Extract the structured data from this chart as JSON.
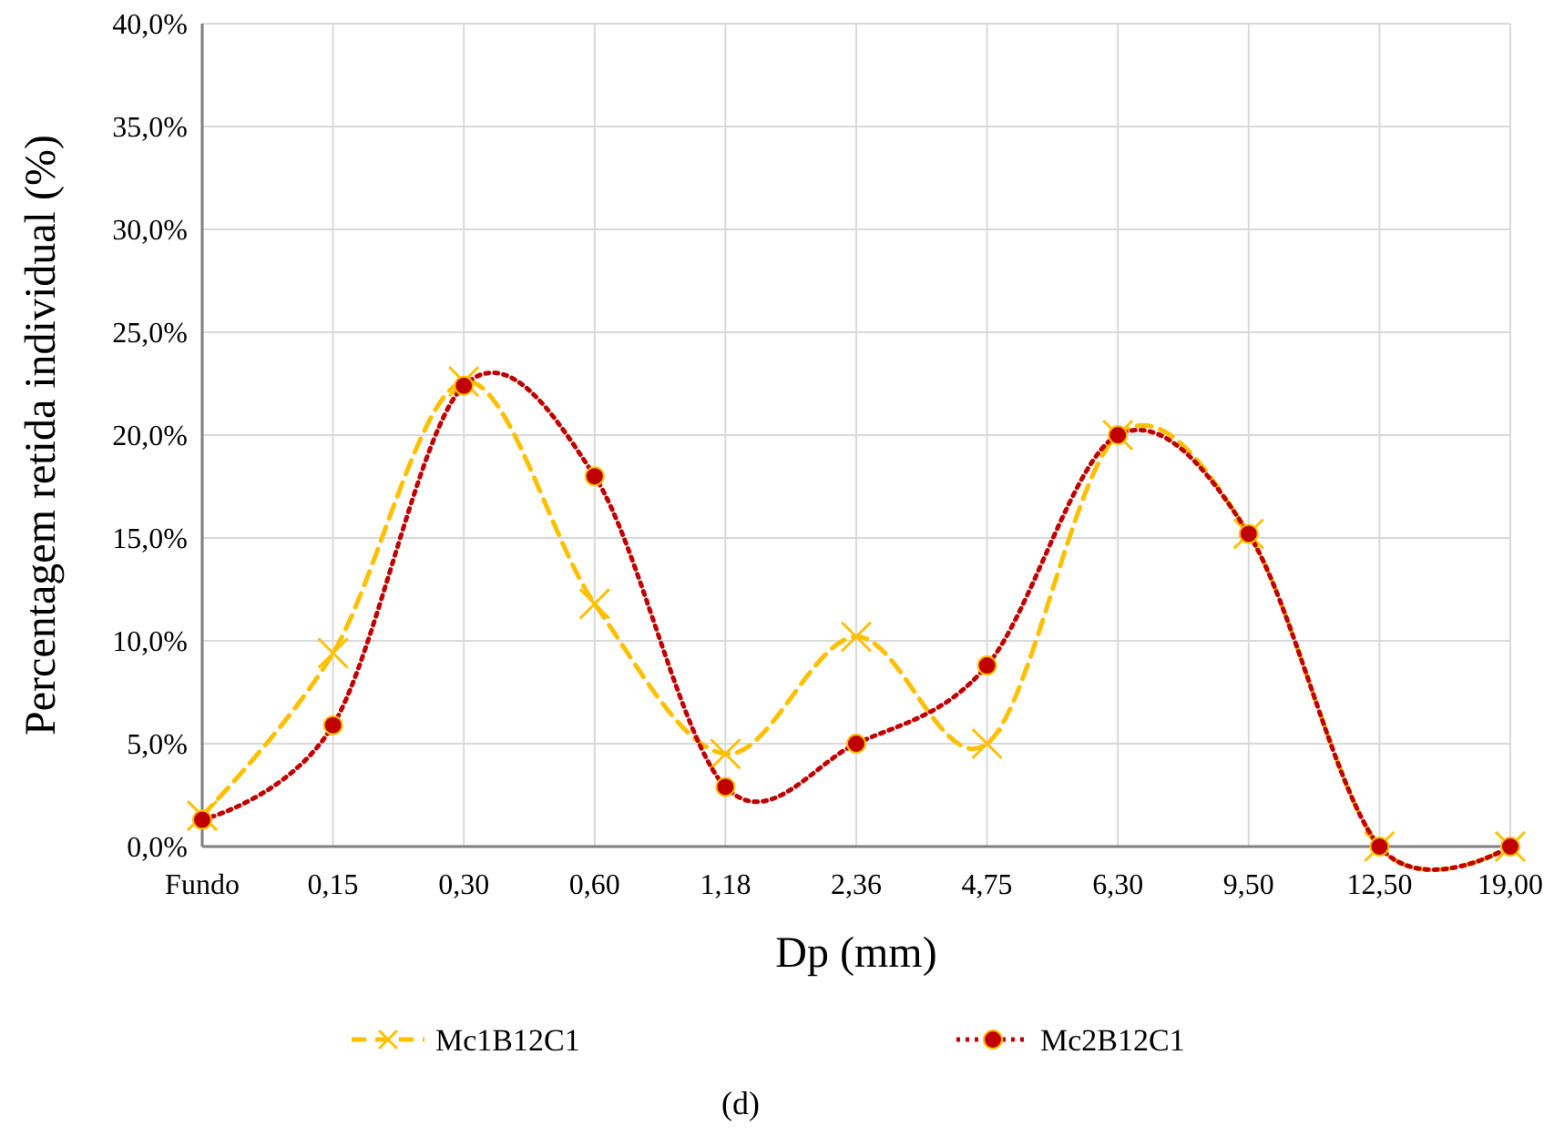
{
  "chart_data": {
    "type": "line",
    "xlabel": "Dp (mm)",
    "ylabel": "Percentagem retida individual (%)",
    "categories": [
      "Fundo",
      "0,15",
      "0,30",
      "0,60",
      "1,18",
      "2,36",
      "4,75",
      "6,30",
      "9,50",
      "12,50",
      "19,00"
    ],
    "series": [
      {
        "name": "Mc1B12C1",
        "color": "#ffc000",
        "marker": "cross",
        "line_style": "dashed",
        "values": [
          1.5,
          9.4,
          22.6,
          11.8,
          4.5,
          10.2,
          5.0,
          20.0,
          15.2,
          0,
          0
        ]
      },
      {
        "name": "Mc2B12C1",
        "color": "#c00000",
        "marker": "circle",
        "line_style": "dotted",
        "values": [
          1.3,
          5.9,
          22.4,
          18.0,
          2.9,
          5.0,
          8.8,
          20.0,
          15.2,
          0,
          0
        ]
      }
    ],
    "ylim": [
      0,
      40
    ],
    "yticks": [
      {
        "value": 0,
        "label": "0,0%"
      },
      {
        "value": 5,
        "label": "5,0%"
      },
      {
        "value": 10,
        "label": "10,0%"
      },
      {
        "value": 15,
        "label": "15,0%"
      },
      {
        "value": 20,
        "label": "20,0%"
      },
      {
        "value": 25,
        "label": "25,0%"
      },
      {
        "value": 30,
        "label": "30,0%"
      },
      {
        "value": 35,
        "label": "35,0%"
      },
      {
        "value": 40,
        "label": "40,0%"
      }
    ],
    "grid": true,
    "legend": "bottom",
    "annotations": [
      "(d)"
    ]
  }
}
